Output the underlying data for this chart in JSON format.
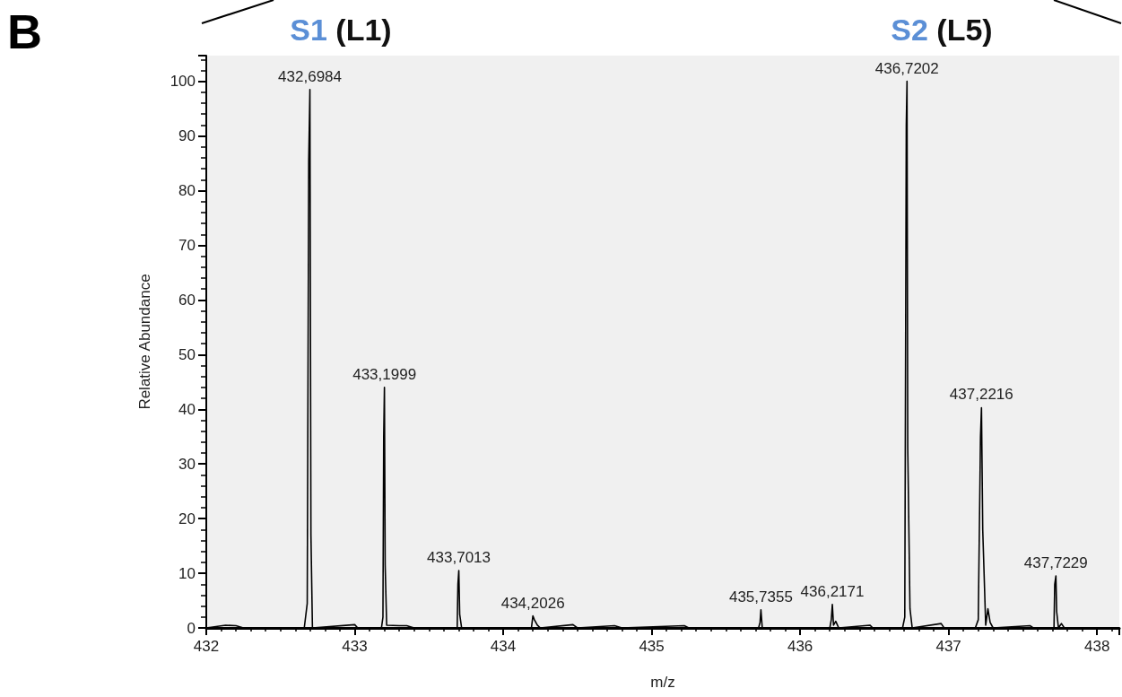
{
  "chart_data": {
    "type": "line",
    "xlabel": "m/z",
    "ylabel": "Relative Abundance",
    "xlim": [
      432,
      438.15
    ],
    "xticks": [
      432,
      433,
      434,
      435,
      436,
      437,
      438
    ],
    "ylim": [
      0,
      104.7
    ],
    "yticks": [
      0,
      10,
      20,
      30,
      40,
      50,
      60,
      70,
      80,
      90,
      100
    ],
    "grid": false,
    "marker": "none",
    "line_style": "solid",
    "series": [
      {
        "color": "#000000",
        "x": [
          432.0,
          432.13,
          432.2,
          432.25,
          432.66,
          432.68,
          432.69,
          432.698,
          432.705,
          432.715,
          433.0,
          433.02,
          433.18,
          433.19,
          433.195,
          433.2,
          433.205,
          433.215,
          433.3,
          433.35,
          433.4,
          433.69,
          433.695,
          433.701,
          433.707,
          433.72,
          434.19,
          434.2,
          434.21,
          434.23,
          434.25,
          434.47,
          434.5,
          434.75,
          434.8,
          435.22,
          435.25,
          435.72,
          435.73,
          435.736,
          435.745,
          436.2,
          436.21,
          436.217,
          436.225,
          436.24,
          436.26,
          436.47,
          436.49,
          436.69,
          436.705,
          436.715,
          436.72,
          436.725,
          436.74,
          436.755,
          436.95,
          436.97,
          437.18,
          437.2,
          437.215,
          437.2216,
          437.23,
          437.25,
          437.265,
          437.28,
          437.3,
          437.55,
          437.57,
          437.71,
          437.715,
          437.7229,
          437.728,
          437.74,
          437.76,
          437.78,
          438.15
        ],
        "values": [
          0,
          0.5,
          0.4,
          0,
          0,
          4.5,
          85.5,
          98.5,
          17,
          0,
          0.6,
          0,
          0,
          2,
          35,
          44,
          11.5,
          0.5,
          0.4,
          0.4,
          0,
          0,
          8,
          10.5,
          2.5,
          0,
          0,
          2.2,
          1.5,
          0.5,
          0,
          0.6,
          0,
          0.4,
          0,
          0.4,
          0,
          0,
          1,
          3.3,
          0,
          0,
          1.5,
          4.3,
          0.5,
          1.2,
          0,
          0.5,
          0,
          0,
          2,
          92,
          100,
          33,
          3.5,
          0,
          0.8,
          0,
          0,
          1.5,
          35,
          40.3,
          18,
          0.5,
          3.5,
          1,
          0,
          0.4,
          0,
          0,
          8,
          9.5,
          3,
          0,
          0.8,
          0,
          0
        ]
      }
    ],
    "annotations": [
      "B",
      "S1 (L1)",
      "S2 (L5)",
      {
        "text": "432,6984",
        "x": 432.698,
        "y": 98.5
      },
      {
        "text": "433,1999",
        "x": 433.2,
        "y": 44
      },
      {
        "text": "433,7013",
        "x": 433.701,
        "y": 10.5
      },
      {
        "text": "434,2026",
        "x": 434.2,
        "y": 2.2
      },
      {
        "text": "435,7355",
        "x": 435.736,
        "y": 3.3
      },
      {
        "text": "436,2171",
        "x": 436.217,
        "y": 4.3
      },
      {
        "text": "436,7202",
        "x": 436.72,
        "y": 100
      },
      {
        "text": "437,2216",
        "x": 437.2216,
        "y": 40.3
      },
      {
        "text": "437,7229",
        "x": 437.7229,
        "y": 9.5
      }
    ]
  }
}
